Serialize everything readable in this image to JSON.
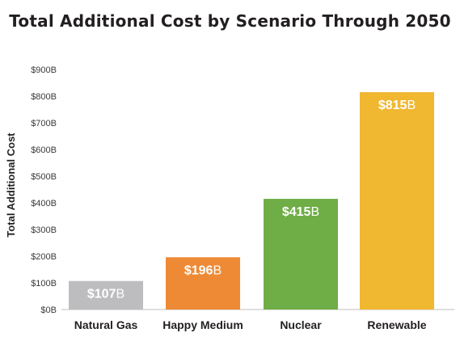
{
  "chart_data": {
    "type": "bar",
    "title": "Total Additional Cost by Scenario Through 2050",
    "ylabel": "Total Additional Cost",
    "xlabel": "",
    "categories": [
      "Natural Gas",
      "Happy Medium",
      "Nuclear",
      "Renewable"
    ],
    "values": [
      107,
      196,
      415,
      815
    ],
    "data_labels": [
      {
        "main": "$107",
        "suffix": "B"
      },
      {
        "main": "$196",
        "suffix": "B"
      },
      {
        "main": "$415",
        "suffix": "B"
      },
      {
        "main": "$815",
        "suffix": "B"
      }
    ],
    "colors": [
      "#bdbdbf",
      "#ee8a35",
      "#6fad46",
      "#f0b731"
    ],
    "ylim": [
      0,
      900
    ],
    "yticks": [
      0,
      100,
      200,
      300,
      400,
      500,
      600,
      700,
      800,
      900
    ],
    "ytick_labels": [
      "$0B",
      "$100B",
      "$200B",
      "$300B",
      "$400B",
      "$500B",
      "$600B",
      "$700B",
      "$800B",
      "$900B"
    ],
    "grid": false,
    "legend": "none"
  }
}
